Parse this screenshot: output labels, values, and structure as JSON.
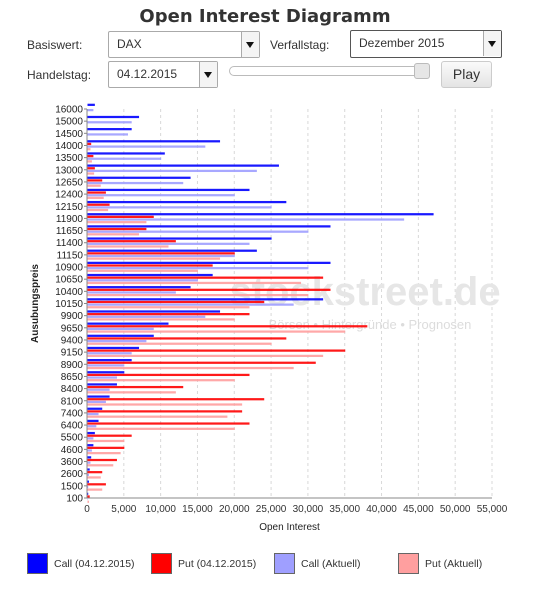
{
  "title": "Open Interest Diagramm",
  "controls": {
    "basiswert_label": "Basiswert:",
    "basiswert_value": "DAX",
    "verfallstag_label": "Verfallstag:",
    "verfallstag_value": "Dezember 2015",
    "handelstag_label": "Handelstag:",
    "handelstag_value": "04.12.2015",
    "slider_value": 1.0,
    "play_label": "Play"
  },
  "watermark": {
    "main": "stockstreet.de",
    "sub": "Börsen • Hintergründe • Prognosen"
  },
  "legend": [
    {
      "label": "Call (04.12.2015)",
      "color": "#0000ff"
    },
    {
      "label": "Put (04.12.2015)",
      "color": "#ff0000"
    },
    {
      "label": "Call (Aktuell)",
      "color": "#9f9fff"
    },
    {
      "label": "Put (Aktuell)",
      "color": "#ff9f9f"
    }
  ],
  "chart_data": {
    "type": "bar",
    "orientation": "horizontal",
    "xlabel": "Open Interest",
    "ylabel": "Ausubungspreis",
    "xlim": [
      0,
      55000
    ],
    "x_ticks": [
      "0",
      "5,000",
      "10,000",
      "15,000",
      "20,000",
      "25,000",
      "30,000",
      "35,000",
      "40,000",
      "45,000",
      "50,000",
      "55,000"
    ],
    "y_ticks": [
      "16000",
      "15000",
      "14500",
      "14000",
      "13500",
      "13000",
      "12650",
      "12400",
      "12150",
      "11900",
      "11650",
      "11400",
      "11150",
      "10900",
      "10650",
      "10400",
      "10150",
      "9900",
      "9650",
      "9400",
      "9150",
      "8900",
      "8650",
      "8400",
      "8100",
      "7400",
      "6400",
      "5500",
      "4600",
      "3600",
      "2600",
      "1500",
      "100"
    ],
    "series": [
      {
        "name": "Call (04.12.2015)",
        "color": "#0000ff",
        "values": [
          {
            "strike": 16000,
            "oi": 1000
          },
          {
            "strike": 15000,
            "oi": 7000
          },
          {
            "strike": 14500,
            "oi": 6000
          },
          {
            "strike": 14000,
            "oi": 18000
          },
          {
            "strike": 13500,
            "oi": 10500
          },
          {
            "strike": 13000,
            "oi": 26000
          },
          {
            "strike": 12650,
            "oi": 14000
          },
          {
            "strike": 12400,
            "oi": 22000
          },
          {
            "strike": 12150,
            "oi": 27000
          },
          {
            "strike": 11900,
            "oi": 47000
          },
          {
            "strike": 11650,
            "oi": 33000
          },
          {
            "strike": 11400,
            "oi": 25000
          },
          {
            "strike": 11150,
            "oi": 23000
          },
          {
            "strike": 10900,
            "oi": 33000
          },
          {
            "strike": 10650,
            "oi": 17000
          },
          {
            "strike": 10400,
            "oi": 14000
          },
          {
            "strike": 10150,
            "oi": 32000
          },
          {
            "strike": 9900,
            "oi": 18000
          },
          {
            "strike": 9650,
            "oi": 11000
          },
          {
            "strike": 9400,
            "oi": 9000
          },
          {
            "strike": 9150,
            "oi": 7000
          },
          {
            "strike": 8900,
            "oi": 6000
          },
          {
            "strike": 8650,
            "oi": 5000
          },
          {
            "strike": 8400,
            "oi": 4000
          },
          {
            "strike": 8100,
            "oi": 3000
          },
          {
            "strike": 7400,
            "oi": 2000
          },
          {
            "strike": 6400,
            "oi": 1500
          },
          {
            "strike": 5500,
            "oi": 1000
          },
          {
            "strike": 4600,
            "oi": 800
          },
          {
            "strike": 3600,
            "oi": 500
          },
          {
            "strike": 2600,
            "oi": 300
          },
          {
            "strike": 1500,
            "oi": 200
          },
          {
            "strike": 100,
            "oi": 100
          }
        ]
      },
      {
        "name": "Put (04.12.2015)",
        "color": "#ff0000",
        "values": [
          {
            "strike": 16000,
            "oi": 0
          },
          {
            "strike": 15000,
            "oi": 0
          },
          {
            "strike": 14500,
            "oi": 0
          },
          {
            "strike": 14000,
            "oi": 500
          },
          {
            "strike": 13500,
            "oi": 800
          },
          {
            "strike": 13000,
            "oi": 1000
          },
          {
            "strike": 12650,
            "oi": 2000
          },
          {
            "strike": 12400,
            "oi": 2500
          },
          {
            "strike": 12150,
            "oi": 3000
          },
          {
            "strike": 11900,
            "oi": 9000
          },
          {
            "strike": 11650,
            "oi": 8000
          },
          {
            "strike": 11400,
            "oi": 12000
          },
          {
            "strike": 11150,
            "oi": 20000
          },
          {
            "strike": 10900,
            "oi": 17000
          },
          {
            "strike": 10650,
            "oi": 32000
          },
          {
            "strike": 10400,
            "oi": 33000
          },
          {
            "strike": 10150,
            "oi": 24000
          },
          {
            "strike": 9900,
            "oi": 22000
          },
          {
            "strike": 9650,
            "oi": 38000
          },
          {
            "strike": 9400,
            "oi": 27000
          },
          {
            "strike": 9150,
            "oi": 35000
          },
          {
            "strike": 8900,
            "oi": 31000
          },
          {
            "strike": 8650,
            "oi": 22000
          },
          {
            "strike": 8400,
            "oi": 13000
          },
          {
            "strike": 8100,
            "oi": 24000
          },
          {
            "strike": 7400,
            "oi": 21000
          },
          {
            "strike": 6400,
            "oi": 22000
          },
          {
            "strike": 5500,
            "oi": 6000
          },
          {
            "strike": 4600,
            "oi": 5000
          },
          {
            "strike": 3600,
            "oi": 4000
          },
          {
            "strike": 2600,
            "oi": 2000
          },
          {
            "strike": 1500,
            "oi": 2500
          },
          {
            "strike": 100,
            "oi": 300
          }
        ]
      },
      {
        "name": "Call (Aktuell)",
        "color": "#9f9fff",
        "values": [
          {
            "strike": 16000,
            "oi": 800
          },
          {
            "strike": 15000,
            "oi": 6000
          },
          {
            "strike": 14500,
            "oi": 5500
          },
          {
            "strike": 14000,
            "oi": 16000
          },
          {
            "strike": 13500,
            "oi": 10000
          },
          {
            "strike": 13000,
            "oi": 23000
          },
          {
            "strike": 12650,
            "oi": 13000
          },
          {
            "strike": 12400,
            "oi": 20000
          },
          {
            "strike": 12150,
            "oi": 25000
          },
          {
            "strike": 11900,
            "oi": 43000
          },
          {
            "strike": 11650,
            "oi": 30000
          },
          {
            "strike": 11400,
            "oi": 22000
          },
          {
            "strike": 11150,
            "oi": 20000
          },
          {
            "strike": 10900,
            "oi": 30000
          },
          {
            "strike": 10650,
            "oi": 15000
          },
          {
            "strike": 10400,
            "oi": 12000
          },
          {
            "strike": 10150,
            "oi": 28000
          },
          {
            "strike": 9900,
            "oi": 16000
          },
          {
            "strike": 9650,
            "oi": 9000
          },
          {
            "strike": 9400,
            "oi": 8000
          },
          {
            "strike": 9150,
            "oi": 6000
          },
          {
            "strike": 8900,
            "oi": 5000
          },
          {
            "strike": 8650,
            "oi": 4000
          },
          {
            "strike": 8400,
            "oi": 3000
          },
          {
            "strike": 8100,
            "oi": 2500
          },
          {
            "strike": 7400,
            "oi": 1500
          },
          {
            "strike": 6400,
            "oi": 1200
          },
          {
            "strike": 5500,
            "oi": 800
          },
          {
            "strike": 4600,
            "oi": 600
          },
          {
            "strike": 3600,
            "oi": 400
          },
          {
            "strike": 2600,
            "oi": 200
          },
          {
            "strike": 1500,
            "oi": 100
          },
          {
            "strike": 100,
            "oi": 50
          }
        ]
      },
      {
        "name": "Put (Aktuell)",
        "color": "#ff9f9f",
        "values": [
          {
            "strike": 16000,
            "oi": 0
          },
          {
            "strike": 15000,
            "oi": 0
          },
          {
            "strike": 14500,
            "oi": 0
          },
          {
            "strike": 14000,
            "oi": 400
          },
          {
            "strike": 13500,
            "oi": 600
          },
          {
            "strike": 13000,
            "oi": 900
          },
          {
            "strike": 12650,
            "oi": 1800
          },
          {
            "strike": 12400,
            "oi": 2200
          },
          {
            "strike": 12150,
            "oi": 2800
          },
          {
            "strike": 11900,
            "oi": 8000
          },
          {
            "strike": 11650,
            "oi": 7000
          },
          {
            "strike": 11400,
            "oi": 11000
          },
          {
            "strike": 11150,
            "oi": 18000
          },
          {
            "strike": 10900,
            "oi": 15000
          },
          {
            "strike": 10650,
            "oi": 29000
          },
          {
            "strike": 10400,
            "oi": 30000
          },
          {
            "strike": 10150,
            "oi": 22000
          },
          {
            "strike": 9900,
            "oi": 20000
          },
          {
            "strike": 9650,
            "oi": 35000
          },
          {
            "strike": 9400,
            "oi": 25000
          },
          {
            "strike": 9150,
            "oi": 32000
          },
          {
            "strike": 8900,
            "oi": 28000
          },
          {
            "strike": 8650,
            "oi": 20000
          },
          {
            "strike": 8400,
            "oi": 12000
          },
          {
            "strike": 8100,
            "oi": 21000
          },
          {
            "strike": 7400,
            "oi": 19000
          },
          {
            "strike": 6400,
            "oi": 20000
          },
          {
            "strike": 5500,
            "oi": 5000
          },
          {
            "strike": 4600,
            "oi": 4500
          },
          {
            "strike": 3600,
            "oi": 3500
          },
          {
            "strike": 2600,
            "oi": 1800
          },
          {
            "strike": 1500,
            "oi": 2000
          },
          {
            "strike": 100,
            "oi": 200
          }
        ]
      }
    ]
  }
}
